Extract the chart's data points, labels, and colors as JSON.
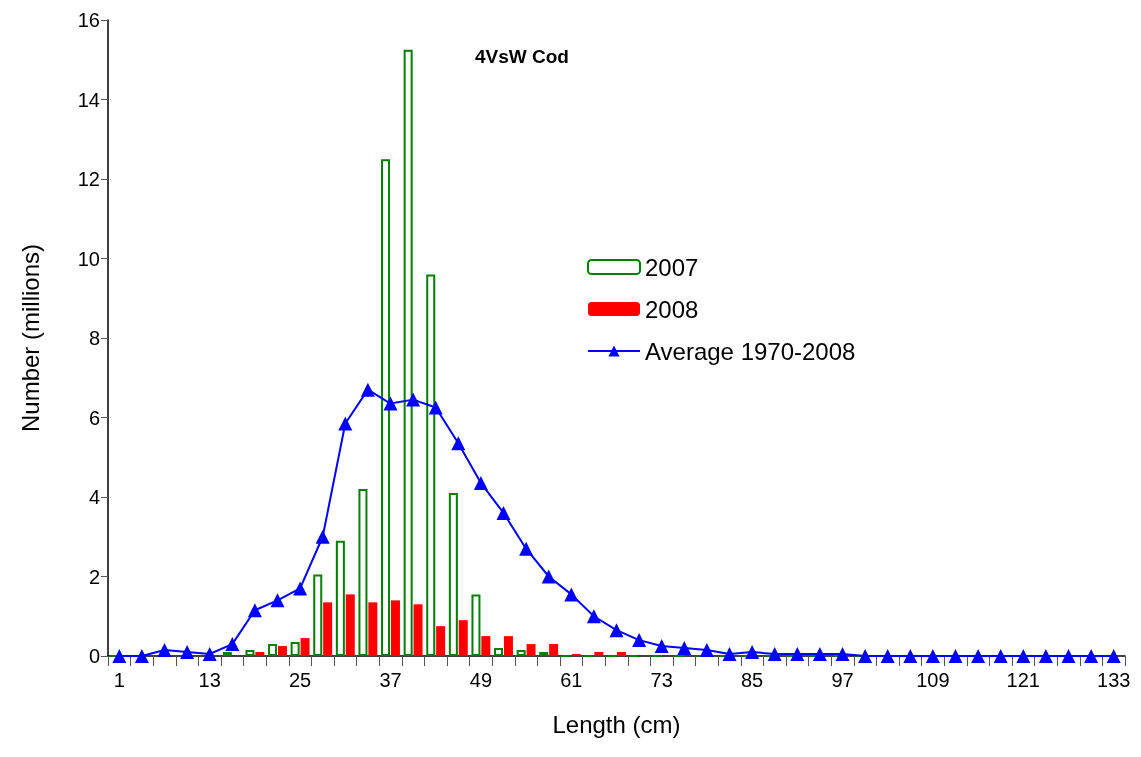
{
  "chart_data": {
    "type": "bar",
    "title": "4VsW Cod",
    "xlabel": "Length (cm)",
    "ylabel": "Number (millions)",
    "categories": [
      "1",
      null,
      null,
      null,
      "13",
      null,
      null,
      null,
      "25",
      null,
      null,
      null,
      "37",
      null,
      null,
      null,
      "49",
      null,
      null,
      null,
      "61",
      null,
      null,
      null,
      "73",
      null,
      null,
      null,
      "85",
      null,
      null,
      null,
      "97",
      null,
      null,
      null,
      "109",
      null,
      null,
      null,
      "121",
      null,
      null,
      null,
      "133"
    ],
    "series": [
      {
        "name": "2007",
        "color": "#008000",
        "values": [
          0,
          0,
          null,
          null,
          null,
          0.1,
          0.15,
          0.3,
          0.35,
          2.05,
          2.9,
          4.2,
          12.5,
          15.25,
          9.6,
          4.1,
          1.55,
          0.2,
          0.15,
          0.1,
          0,
          0,
          0,
          0,
          0,
          0,
          0,
          0,
          0,
          0,
          0,
          0,
          0,
          0,
          0,
          0,
          0,
          0,
          0,
          0,
          0,
          0,
          0,
          0,
          0
        ]
      },
      {
        "name": "2008",
        "color": "#ff0000",
        "values": [
          0,
          0,
          0,
          null,
          0,
          0,
          0.1,
          0.25,
          0.45,
          1.35,
          1.55,
          1.35,
          1.4,
          1.3,
          0.75,
          0.9,
          0.5,
          0.5,
          0.3,
          0.3,
          0.05,
          0.1,
          0.1,
          0,
          0,
          0,
          0,
          0,
          0,
          0,
          0,
          0,
          0,
          0,
          0,
          0,
          0,
          0,
          0,
          0,
          0,
          0,
          0,
          0,
          0
        ]
      },
      {
        "name": "Average 1970-2008",
        "type": "line",
        "color": "#0000ff",
        "values": [
          0,
          0,
          0.15,
          0.1,
          0.05,
          0.3,
          1.15,
          1.4,
          1.7,
          3.0,
          5.85,
          6.7,
          6.35,
          6.45,
          6.25,
          5.35,
          4.35,
          3.6,
          2.7,
          2.0,
          1.55,
          1.0,
          0.65,
          0.4,
          0.25,
          0.2,
          0.15,
          0.05,
          0.1,
          0.05,
          0.05,
          0.05,
          0.05,
          0,
          0,
          0,
          0,
          0,
          0,
          0,
          0,
          0,
          0,
          0,
          0
        ]
      }
    ],
    "ylim": [
      0,
      16
    ],
    "yticks": [
      0,
      2,
      4,
      6,
      8,
      10,
      12,
      14,
      16
    ],
    "grid": false,
    "legend": "top",
    "marker": "triangle",
    "line_style": "solid"
  }
}
